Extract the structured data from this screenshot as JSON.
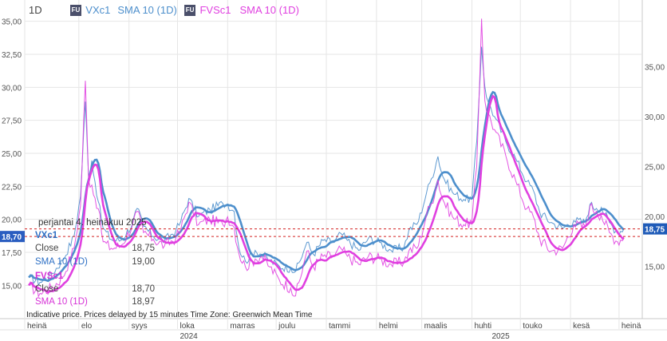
{
  "header": {
    "interval": "1D",
    "badge": "FU",
    "series1_name": "VXc1",
    "series1_sma": "SMA 10 (1D)",
    "series2_name": "FVSc1",
    "series2_sma": "SMA 10 (1D)"
  },
  "panel": {
    "date": "perjantai 4. heinäkuu 2025",
    "s1_title": "VXc1",
    "s1_close_label": "Close",
    "s1_close": "18,75",
    "s1_sma_label": "SMA 10 (1D)",
    "s1_sma": "19,00",
    "s2_title": "FVSc1",
    "s2_close_label": "Close",
    "s2_close": "18,70",
    "s2_sma_label": "SMA 10 (1D)",
    "s2_sma": "18,97"
  },
  "footer": {
    "note": "Indicative price. Prices delayed by 15 minutes    Time Zone: Greenwich Mean Time"
  },
  "colors": {
    "vx": "#4d8fcc",
    "fvs": "#e040e0",
    "vx_last": "#1f5bb8",
    "fvs_last": "#2a5dc0",
    "grid": "#e6e6e6"
  },
  "chart_data": {
    "type": "line",
    "left_axis": {
      "ticks": [
        "35,00",
        "32,50",
        "30,00",
        "27,50",
        "25,00",
        "22,50",
        "20,00",
        "17,50",
        "15,00"
      ],
      "ylim": [
        13.6,
        35.8
      ],
      "series": "FVSc1"
    },
    "right_axis": {
      "ticks": [
        "35,00",
        "30,00",
        "25,00",
        "20,00",
        "15,00"
      ],
      "ylim": [
        11.2,
        39.5
      ],
      "series": "VXc1"
    },
    "x_months": [
      "heinä",
      "elo",
      "syys",
      "loka",
      "marras",
      "joulu",
      "tammi",
      "helmi",
      "maalis",
      "huhti",
      "touko",
      "kesä",
      "heinä"
    ],
    "x_years": [
      "2024",
      "2025"
    ],
    "last_values": {
      "FVSc1": "18,70",
      "VXc1": "18,75"
    },
    "x_range": [
      "2024-07-01",
      "2025-07-04"
    ],
    "series": [
      {
        "name": "VXc1",
        "axis": "right",
        "points": [
          [
            "2024-07-01",
            13.9
          ],
          [
            "2024-07-08",
            13.4
          ],
          [
            "2024-07-15",
            14.2
          ],
          [
            "2024-07-22",
            15.6
          ],
          [
            "2024-07-29",
            18.0
          ],
          [
            "2024-08-02",
            22.0
          ],
          [
            "2024-08-05",
            31.5
          ],
          [
            "2024-08-07",
            24.0
          ],
          [
            "2024-08-09",
            25.6
          ],
          [
            "2024-08-13",
            21.5
          ],
          [
            "2024-08-16",
            18.8
          ],
          [
            "2024-08-21",
            17.7
          ],
          [
            "2024-08-27",
            17.6
          ],
          [
            "2024-09-03",
            19.2
          ],
          [
            "2024-09-06",
            20.8
          ],
          [
            "2024-09-10",
            19.0
          ],
          [
            "2024-09-16",
            18.0
          ],
          [
            "2024-09-23",
            17.6
          ],
          [
            "2024-09-30",
            18.6
          ],
          [
            "2024-10-03",
            19.5
          ],
          [
            "2024-10-08",
            21.8
          ],
          [
            "2024-10-14",
            20.0
          ],
          [
            "2024-10-21",
            20.7
          ],
          [
            "2024-10-29",
            21.3
          ],
          [
            "2024-11-01",
            21.2
          ],
          [
            "2024-11-05",
            20.5
          ],
          [
            "2024-11-08",
            16.8
          ],
          [
            "2024-11-12",
            15.5
          ],
          [
            "2024-11-18",
            16.6
          ],
          [
            "2024-11-22",
            16.2
          ],
          [
            "2024-11-27",
            15.6
          ],
          [
            "2024-12-03",
            15.0
          ],
          [
            "2024-12-10",
            14.8
          ],
          [
            "2024-12-13",
            14.5
          ],
          [
            "2024-12-18",
            16.5
          ],
          [
            "2024-12-20",
            17.4
          ],
          [
            "2024-12-24",
            16.2
          ],
          [
            "2024-12-30",
            17.6
          ],
          [
            "2025-01-06",
            17.4
          ],
          [
            "2025-01-10",
            18.3
          ],
          [
            "2025-01-14",
            17.6
          ],
          [
            "2025-01-21",
            16.6
          ],
          [
            "2025-01-27",
            17.8
          ],
          [
            "2025-02-03",
            17.4
          ],
          [
            "2025-02-10",
            16.6
          ],
          [
            "2025-02-18",
            16.9
          ],
          [
            "2025-02-21",
            18.6
          ],
          [
            "2025-02-27",
            19.5
          ],
          [
            "2025-03-04",
            22.4
          ],
          [
            "2025-03-07",
            23.8
          ],
          [
            "2025-03-11",
            26.0
          ],
          [
            "2025-03-14",
            24.0
          ],
          [
            "2025-03-20",
            22.4
          ],
          [
            "2025-03-27",
            21.7
          ],
          [
            "2025-04-01",
            21.8
          ],
          [
            "2025-04-04",
            27.5
          ],
          [
            "2025-04-07",
            37.0
          ],
          [
            "2025-04-09",
            33.0
          ],
          [
            "2025-04-11",
            31.5
          ],
          [
            "2025-04-15",
            30.0
          ],
          [
            "2025-04-22",
            27.5
          ],
          [
            "2025-04-29",
            25.5
          ],
          [
            "2025-05-05",
            23.5
          ],
          [
            "2025-05-09",
            22.6
          ],
          [
            "2025-05-13",
            20.4
          ],
          [
            "2025-05-20",
            19.4
          ],
          [
            "2025-05-27",
            18.8
          ],
          [
            "2025-06-03",
            19.6
          ],
          [
            "2025-06-10",
            19.4
          ],
          [
            "2025-06-13",
            21.2
          ],
          [
            "2025-06-17",
            20.8
          ],
          [
            "2025-06-20",
            20.9
          ],
          [
            "2025-06-25",
            19.4
          ],
          [
            "2025-06-30",
            18.4
          ],
          [
            "2025-07-04",
            18.75
          ]
        ]
      },
      {
        "name": "FVSc1",
        "axis": "left",
        "points": [
          [
            "2024-07-01",
            15.0
          ],
          [
            "2024-07-08",
            14.4
          ],
          [
            "2024-07-15",
            14.8
          ],
          [
            "2024-07-22",
            15.6
          ],
          [
            "2024-07-29",
            17.8
          ],
          [
            "2024-08-02",
            21.0
          ],
          [
            "2024-08-05",
            30.5
          ],
          [
            "2024-08-07",
            23.0
          ],
          [
            "2024-08-09",
            22.6
          ],
          [
            "2024-08-13",
            20.8
          ],
          [
            "2024-08-16",
            18.3
          ],
          [
            "2024-08-21",
            17.8
          ],
          [
            "2024-08-27",
            18.0
          ],
          [
            "2024-09-03",
            19.5
          ],
          [
            "2024-09-06",
            20.6
          ],
          [
            "2024-09-10",
            19.0
          ],
          [
            "2024-09-16",
            18.5
          ],
          [
            "2024-09-23",
            18.0
          ],
          [
            "2024-09-30",
            18.6
          ],
          [
            "2024-10-03",
            19.2
          ],
          [
            "2024-10-08",
            21.3
          ],
          [
            "2024-10-14",
            19.6
          ],
          [
            "2024-10-21",
            20.0
          ],
          [
            "2024-10-29",
            19.6
          ],
          [
            "2024-11-01",
            20.2
          ],
          [
            "2024-11-05",
            19.4
          ],
          [
            "2024-11-08",
            17.4
          ],
          [
            "2024-11-12",
            16.4
          ],
          [
            "2024-11-18",
            17.0
          ],
          [
            "2024-11-22",
            17.2
          ],
          [
            "2024-11-27",
            16.4
          ],
          [
            "2024-12-03",
            15.4
          ],
          [
            "2024-12-10",
            14.8
          ],
          [
            "2024-12-13",
            14.2
          ],
          [
            "2024-12-18",
            16.6
          ],
          [
            "2024-12-20",
            17.6
          ],
          [
            "2024-12-24",
            16.4
          ],
          [
            "2024-12-30",
            17.2
          ],
          [
            "2025-01-06",
            17.2
          ],
          [
            "2025-01-10",
            17.8
          ],
          [
            "2025-01-14",
            17.2
          ],
          [
            "2025-01-21",
            16.6
          ],
          [
            "2025-01-27",
            17.2
          ],
          [
            "2025-02-03",
            17.0
          ],
          [
            "2025-02-10",
            16.6
          ],
          [
            "2025-02-18",
            16.8
          ],
          [
            "2025-02-21",
            17.6
          ],
          [
            "2025-02-27",
            18.0
          ],
          [
            "2025-03-04",
            20.4
          ],
          [
            "2025-03-07",
            21.2
          ],
          [
            "2025-03-11",
            23.0
          ],
          [
            "2025-03-14",
            21.5
          ],
          [
            "2025-03-20",
            20.2
          ],
          [
            "2025-03-27",
            19.6
          ],
          [
            "2025-04-01",
            19.8
          ],
          [
            "2025-04-04",
            24.0
          ],
          [
            "2025-04-07",
            35.2
          ],
          [
            "2025-04-09",
            29.0
          ],
          [
            "2025-04-11",
            28.0
          ],
          [
            "2025-04-15",
            26.8
          ],
          [
            "2025-04-22",
            24.8
          ],
          [
            "2025-04-29",
            22.6
          ],
          [
            "2025-05-05",
            20.8
          ],
          [
            "2025-05-09",
            20.2
          ],
          [
            "2025-05-13",
            18.5
          ],
          [
            "2025-05-20",
            17.6
          ],
          [
            "2025-05-27",
            17.8
          ],
          [
            "2025-06-03",
            19.6
          ],
          [
            "2025-06-10",
            19.4
          ],
          [
            "2025-06-13",
            21.0
          ],
          [
            "2025-06-17",
            20.6
          ],
          [
            "2025-06-20",
            20.3
          ],
          [
            "2025-06-25",
            19.0
          ],
          [
            "2025-06-30",
            18.3
          ],
          [
            "2025-07-04",
            18.7
          ]
        ]
      }
    ]
  }
}
